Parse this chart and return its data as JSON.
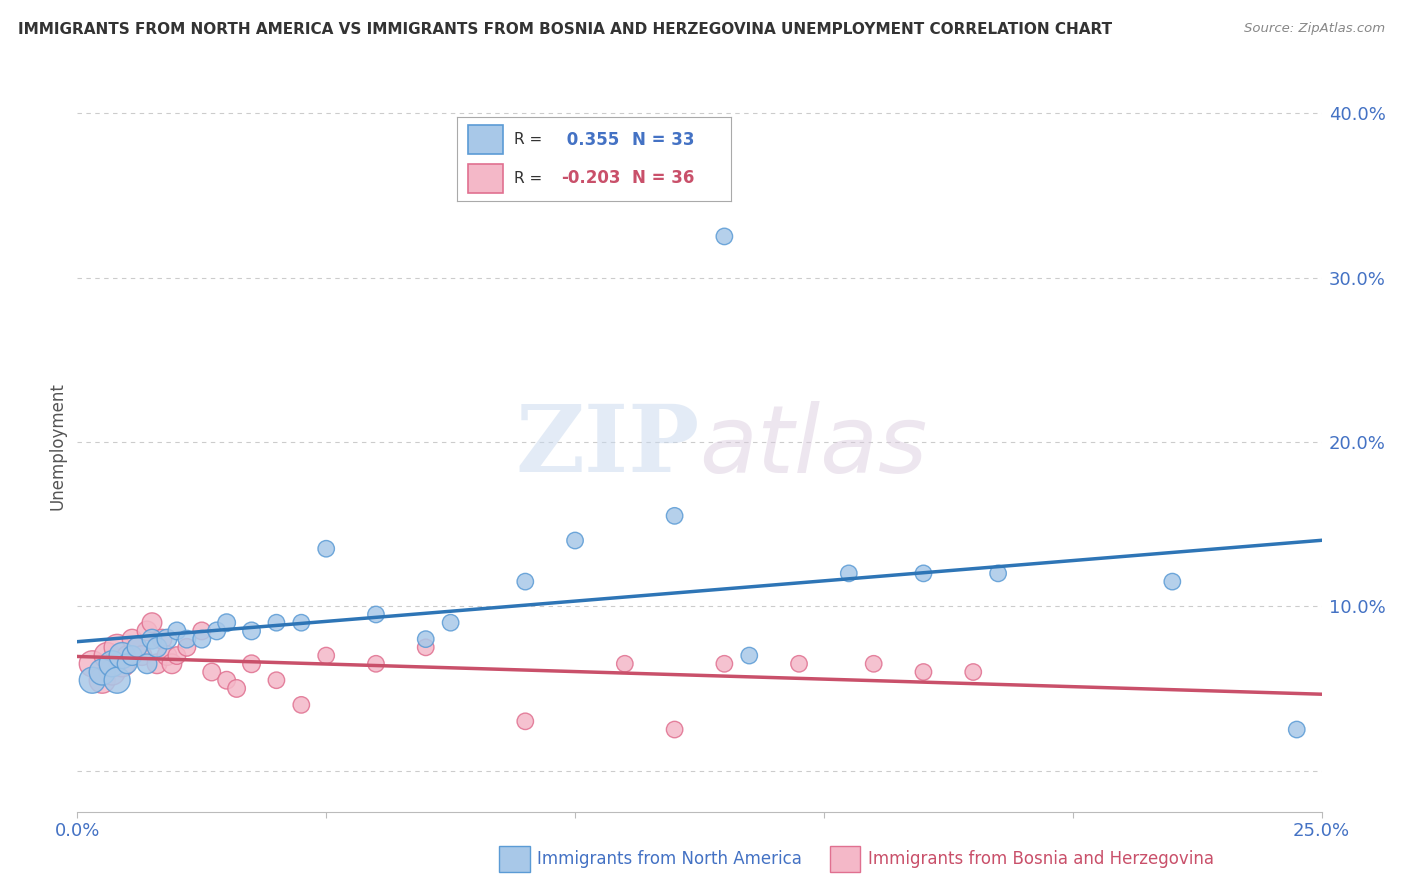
{
  "title": "IMMIGRANTS FROM NORTH AMERICA VS IMMIGRANTS FROM BOSNIA AND HERZEGOVINA UNEMPLOYMENT CORRELATION CHART",
  "source": "Source: ZipAtlas.com",
  "ylabel": "Unemployment",
  "xlim": [
    0.0,
    0.25
  ],
  "ylim": [
    -0.025,
    0.42
  ],
  "yticks": [
    0.0,
    0.1,
    0.2,
    0.3,
    0.4
  ],
  "ytick_labels": [
    "",
    "10.0%",
    "20.0%",
    "30.0%",
    "40.0%"
  ],
  "xticks": [
    0.0,
    0.05,
    0.1,
    0.15,
    0.2,
    0.25
  ],
  "xtick_labels": [
    "0.0%",
    "",
    "",
    "",
    "",
    "25.0%"
  ],
  "blue_color": "#a8c8e8",
  "pink_color": "#f4b8c8",
  "blue_edge_color": "#5b9bd5",
  "pink_edge_color": "#e07090",
  "blue_line_color": "#2e75b6",
  "pink_line_color": "#c9506a",
  "r_blue": 0.355,
  "n_blue": 33,
  "r_pink": -0.203,
  "n_pink": 36,
  "legend_label_blue": "Immigrants from North America",
  "legend_label_pink": "Immigrants from Bosnia and Herzegovina",
  "blue_scatter_x": [
    0.003,
    0.005,
    0.007,
    0.008,
    0.009,
    0.01,
    0.011,
    0.012,
    0.014,
    0.015,
    0.016,
    0.018,
    0.02,
    0.022,
    0.025,
    0.028,
    0.03,
    0.035,
    0.04,
    0.045,
    0.05,
    0.06,
    0.07,
    0.075,
    0.09,
    0.1,
    0.12,
    0.135,
    0.155,
    0.17,
    0.185,
    0.22,
    0.245
  ],
  "blue_scatter_y": [
    0.055,
    0.06,
    0.065,
    0.055,
    0.07,
    0.065,
    0.07,
    0.075,
    0.065,
    0.08,
    0.075,
    0.08,
    0.085,
    0.08,
    0.08,
    0.085,
    0.09,
    0.085,
    0.09,
    0.09,
    0.135,
    0.095,
    0.08,
    0.09,
    0.115,
    0.14,
    0.155,
    0.07,
    0.12,
    0.12,
    0.12,
    0.115,
    0.025
  ],
  "blue_outlier_x": [
    0.13
  ],
  "blue_outlier_y": [
    0.325
  ],
  "pink_scatter_x": [
    0.003,
    0.005,
    0.006,
    0.007,
    0.008,
    0.009,
    0.01,
    0.011,
    0.012,
    0.013,
    0.014,
    0.015,
    0.016,
    0.017,
    0.018,
    0.019,
    0.02,
    0.022,
    0.025,
    0.027,
    0.03,
    0.032,
    0.035,
    0.04,
    0.045,
    0.05,
    0.06,
    0.07,
    0.09,
    0.11,
    0.12,
    0.13,
    0.145,
    0.16,
    0.17,
    0.18
  ],
  "pink_scatter_y": [
    0.065,
    0.055,
    0.07,
    0.06,
    0.075,
    0.065,
    0.07,
    0.08,
    0.075,
    0.07,
    0.085,
    0.09,
    0.065,
    0.08,
    0.07,
    0.065,
    0.07,
    0.075,
    0.085,
    0.06,
    0.055,
    0.05,
    0.065,
    0.055,
    0.04,
    0.07,
    0.065,
    0.075,
    0.03,
    0.065,
    0.025,
    0.065,
    0.065,
    0.065,
    0.06,
    0.06
  ],
  "watermark_zip": "ZIP",
  "watermark_atlas": "atlas",
  "background_color": "#ffffff",
  "grid_color": "#cccccc",
  "axis_tick_color": "#4472c4",
  "ylabel_color": "#555555",
  "title_color": "#333333",
  "source_color": "#888888"
}
